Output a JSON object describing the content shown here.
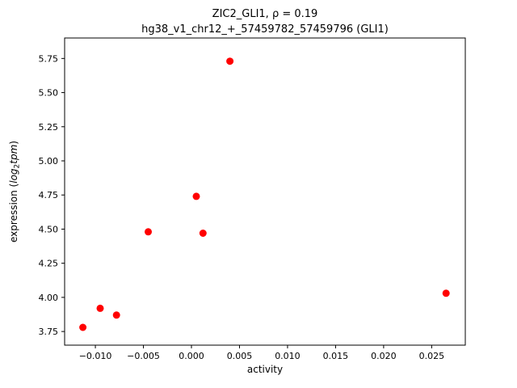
{
  "figure": {
    "background": "#ffffff"
  },
  "chart_data": {
    "type": "scatter",
    "title_line1": "ZIC2_GLI1, ρ = 0.19",
    "title_line2": "hg38_v1_chr12_+_57459782_57459796 (GLI1)",
    "xlabel": "activity",
    "ylabel": "expression (log2tpm)",
    "ylabel_parts": {
      "prefix": "expression (",
      "log": "log",
      "sub": "2",
      "var": "tpm",
      "suffix": ")"
    },
    "marker_color": "#ff0000",
    "axis_color": "#000000",
    "grid": false,
    "legend": "none",
    "xlim": [
      -0.0132,
      0.0285
    ],
    "ylim": [
      3.65,
      5.9
    ],
    "xticks": [
      -0.01,
      -0.005,
      0.0,
      0.005,
      0.01,
      0.015,
      0.02,
      0.025
    ],
    "xtick_labels": [
      "−0.010",
      "−0.005",
      "0.000",
      "0.005",
      "0.010",
      "0.015",
      "0.020",
      "0.025"
    ],
    "yticks": [
      3.75,
      4.0,
      4.25,
      4.5,
      4.75,
      5.0,
      5.25,
      5.5,
      5.75
    ],
    "ytick_labels": [
      "3.75",
      "4.00",
      "4.25",
      "4.50",
      "4.75",
      "5.00",
      "5.25",
      "5.50",
      "5.75"
    ],
    "points": [
      {
        "x": -0.0113,
        "y": 3.78
      },
      {
        "x": -0.0095,
        "y": 3.92
      },
      {
        "x": -0.0078,
        "y": 3.87
      },
      {
        "x": -0.0045,
        "y": 4.48
      },
      {
        "x": 0.0005,
        "y": 4.74
      },
      {
        "x": 0.0012,
        "y": 4.47
      },
      {
        "x": 0.004,
        "y": 5.73
      },
      {
        "x": 0.0265,
        "y": 4.03
      }
    ]
  }
}
